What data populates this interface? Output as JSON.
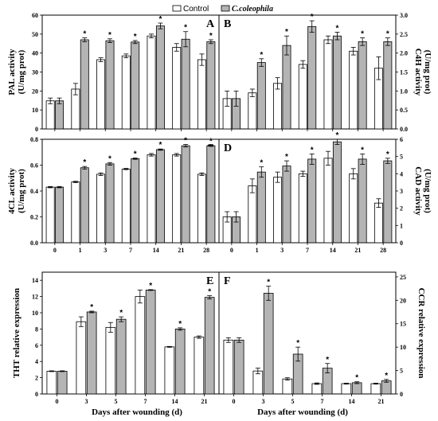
{
  "legend": {
    "control": "Control",
    "treatment": "C.coleophila",
    "control_color": "#ffffff",
    "treatment_color": "#b4b4b4"
  },
  "xlabel_left": "Days after wounding (d)",
  "xlabel_right": "Days after wounding (d)",
  "chart_data": [
    {
      "id": "A",
      "letter": "A",
      "type": "bar",
      "side": "left",
      "ylabel_line1": "PAL activity",
      "ylabel_line2": "(U/mg prot)",
      "ylim": [
        0,
        60
      ],
      "yticks": [
        0,
        10,
        20,
        30,
        40,
        50,
        60
      ],
      "ytick_labels": [
        "0",
        "10",
        "20",
        "30",
        "40",
        "50",
        "60"
      ],
      "categories": [
        "0",
        "1",
        "3",
        "7",
        "14",
        "21",
        "28"
      ],
      "show_xticklabels": false,
      "series": [
        {
          "name": "Control",
          "values": [
            14.8,
            21,
            36.5,
            38.5,
            49,
            43,
            36.5
          ],
          "errors": [
            1.5,
            3,
            1,
            1,
            1,
            2,
            3
          ]
        },
        {
          "name": "C.coleophila",
          "values": [
            14.8,
            47,
            46.5,
            45.8,
            54.3,
            47.3,
            46
          ],
          "errors": [
            1.5,
            1,
            1,
            0.8,
            1.5,
            4,
            1
          ]
        }
      ],
      "significant": [
        false,
        true,
        true,
        true,
        true,
        true,
        true
      ]
    },
    {
      "id": "B",
      "letter": "B",
      "type": "bar",
      "side": "right",
      "ylabel_line1": "C4H activity",
      "ylabel_line2": "(U/mg prot)",
      "ylim": [
        0,
        3.0
      ],
      "yticks": [
        0,
        0.5,
        1.0,
        1.5,
        2.0,
        2.5,
        3.0
      ],
      "ytick_labels": [
        "0.0",
        "0.5",
        "1.0",
        "1.5",
        "2.0",
        "2.5",
        "3.0"
      ],
      "categories": [
        "0",
        "1",
        "3",
        "7",
        "14",
        "21",
        "28"
      ],
      "show_xticklabels": false,
      "series": [
        {
          "name": "Control",
          "values": [
            0.8,
            0.95,
            1.2,
            1.7,
            2.35,
            2.05,
            1.6
          ],
          "errors": [
            0.2,
            0.1,
            0.15,
            0.1,
            0.1,
            0.1,
            0.3
          ]
        },
        {
          "name": "C.coleophila",
          "values": [
            0.8,
            1.75,
            2.2,
            2.7,
            2.45,
            2.3,
            2.3
          ],
          "errors": [
            0.2,
            0.1,
            0.25,
            0.15,
            0.1,
            0.1,
            0.1
          ]
        }
      ],
      "significant": [
        false,
        true,
        true,
        true,
        true,
        true,
        true
      ]
    },
    {
      "id": "C",
      "letter": "C",
      "type": "bar",
      "side": "left",
      "ylabel_line1": "4CL activity",
      "ylabel_line2": "(U/mg prot)",
      "ylim": [
        0,
        0.8
      ],
      "yticks": [
        0,
        0.2,
        0.4,
        0.6,
        0.8
      ],
      "ytick_labels": [
        "0.0",
        "0.2",
        "0.4",
        "0.6",
        "0.8"
      ],
      "categories": [
        "0",
        "1",
        "3",
        "7",
        "14",
        "21",
        "28"
      ],
      "show_xticklabels": true,
      "series": [
        {
          "name": "Control",
          "values": [
            0.43,
            0.47,
            0.53,
            0.57,
            0.68,
            0.68,
            0.53
          ],
          "errors": [
            0.005,
            0.005,
            0.01,
            0.005,
            0.01,
            0.01,
            0.01
          ]
        },
        {
          "name": "C.coleophila",
          "values": [
            0.43,
            0.58,
            0.61,
            0.65,
            0.72,
            0.75,
            0.75
          ],
          "errors": [
            0.005,
            0.01,
            0.01,
            0.005,
            0.005,
            0.01,
            0.005
          ]
        }
      ],
      "significant": [
        false,
        true,
        true,
        true,
        true,
        true,
        true
      ]
    },
    {
      "id": "D",
      "letter": "D",
      "type": "bar",
      "side": "right",
      "ylabel_line1": "CAD activity",
      "ylabel_line2": "(U/mg prot)",
      "ylim": [
        0,
        6
      ],
      "yticks": [
        0,
        1,
        2,
        3,
        4,
        5,
        6
      ],
      "ytick_labels": [
        "0",
        "1",
        "2",
        "3",
        "4",
        "5",
        "6"
      ],
      "categories": [
        "0",
        "1",
        "3",
        "7",
        "14",
        "21",
        "28"
      ],
      "show_xticklabels": true,
      "series": [
        {
          "name": "Control",
          "values": [
            1.5,
            3.3,
            3.8,
            4.0,
            4.9,
            4.0,
            2.3
          ],
          "errors": [
            0.3,
            0.4,
            0.3,
            0.15,
            0.4,
            0.3,
            0.25
          ]
        },
        {
          "name": "C.coleophila",
          "values": [
            1.5,
            4.1,
            4.45,
            4.85,
            5.85,
            4.85,
            4.75
          ],
          "errors": [
            0.3,
            0.3,
            0.3,
            0.3,
            0.15,
            0.3,
            0.15
          ]
        }
      ],
      "significant": [
        false,
        true,
        true,
        true,
        true,
        true,
        true
      ]
    },
    {
      "id": "E",
      "letter": "E",
      "type": "bar",
      "side": "left",
      "ylabel_line1": "THT relative expression",
      "ylabel_line2": "",
      "ylim": [
        0,
        15
      ],
      "yticks": [
        0,
        2,
        4,
        6,
        8,
        10,
        12,
        14
      ],
      "ytick_labels": [
        "0",
        "2",
        "4",
        "6",
        "8",
        "10",
        "12",
        "14"
      ],
      "categories": [
        "0",
        "3",
        "5",
        "7",
        "14",
        "21"
      ],
      "show_xticklabels": true,
      "series": [
        {
          "name": "Control",
          "values": [
            2.8,
            8.9,
            8.2,
            12,
            5.8,
            7.0
          ],
          "errors": [
            0.05,
            0.6,
            0.6,
            0.8,
            0.05,
            0.15
          ]
        },
        {
          "name": "C.coleophila",
          "values": [
            2.8,
            10.1,
            9.2,
            12.8,
            8.0,
            11.9
          ],
          "errors": [
            0.05,
            0.1,
            0.3,
            0.05,
            0.15,
            0.2
          ]
        }
      ],
      "significant": [
        false,
        true,
        true,
        true,
        true,
        true
      ]
    },
    {
      "id": "F",
      "letter": "F",
      "type": "bar",
      "side": "right",
      "ylabel_line1": "CCR relative expression",
      "ylabel_line2": "",
      "ylim": [
        0,
        26
      ],
      "yticks": [
        0,
        5,
        10,
        15,
        20,
        25
      ],
      "ytick_labels": [
        "0",
        "5",
        "10",
        "15",
        "20",
        "25"
      ],
      "categories": [
        "0",
        "3",
        "5",
        "7",
        "14",
        "21"
      ],
      "show_xticklabels": true,
      "series": [
        {
          "name": "Control",
          "values": [
            11.5,
            4.9,
            3.2,
            2.2,
            2.2,
            2.2
          ],
          "errors": [
            0.5,
            0.6,
            0.25,
            0.15,
            0.1,
            0.1
          ]
        },
        {
          "name": "C.coleophila",
          "values": [
            11.5,
            21.5,
            8.5,
            5.5,
            2.4,
            2.8
          ],
          "errors": [
            0.5,
            1.5,
            1.5,
            1.0,
            0.2,
            0.3
          ]
        }
      ],
      "significant": [
        false,
        true,
        true,
        true,
        true,
        true
      ]
    }
  ]
}
